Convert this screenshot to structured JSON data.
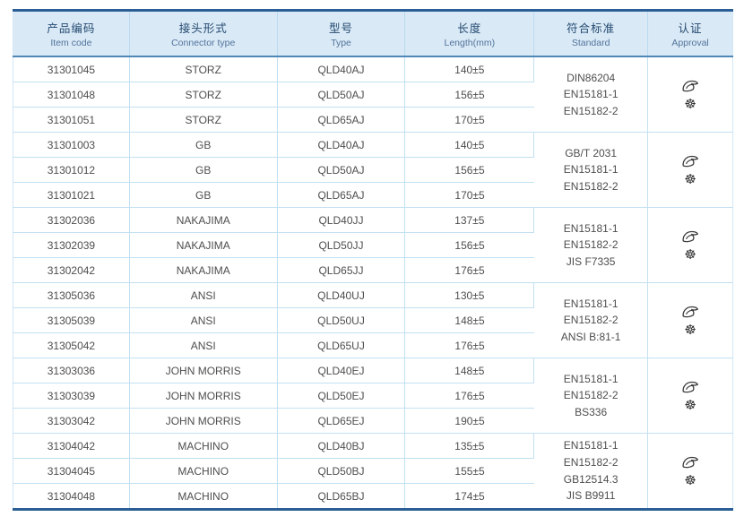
{
  "table": {
    "columns": [
      {
        "zh": "产品编码",
        "en": "Item code"
      },
      {
        "zh": "接头形式",
        "en": "Connector type"
      },
      {
        "zh": "型号",
        "en": "Type"
      },
      {
        "zh": "长度",
        "en": "Length(mm)"
      },
      {
        "zh": "符合标准",
        "en": "Standard"
      },
      {
        "zh": "认证",
        "en": "Approval"
      }
    ],
    "groups": [
      {
        "rows": [
          {
            "item_code": "31301045",
            "connector_type": "STORZ",
            "type": "QLD40AJ",
            "length": "140±5"
          },
          {
            "item_code": "31301048",
            "connector_type": "STORZ",
            "type": "QLD50AJ",
            "length": "156±5"
          },
          {
            "item_code": "31301051",
            "connector_type": "STORZ",
            "type": "QLD65AJ",
            "length": "170±5"
          }
        ],
        "standards": [
          "DIN86204",
          "EN15181-1",
          "EN15182-2"
        ],
        "approval_icons": [
          "certification-logo-icon",
          "wheelmark-icon"
        ]
      },
      {
        "rows": [
          {
            "item_code": "31301003",
            "connector_type": "GB",
            "type": "QLD40AJ",
            "length": "140±5"
          },
          {
            "item_code": "31301012",
            "connector_type": "GB",
            "type": "QLD50AJ",
            "length": "156±5"
          },
          {
            "item_code": "31301021",
            "connector_type": "GB",
            "type": "QLD65AJ",
            "length": "170±5"
          }
        ],
        "standards": [
          "GB/T 2031",
          "EN15181-1",
          "EN15182-2"
        ],
        "approval_icons": [
          "certification-logo-icon",
          "wheelmark-icon"
        ]
      },
      {
        "rows": [
          {
            "item_code": "31302036",
            "connector_type": "NAKAJIMA",
            "type": "QLD40JJ",
            "length": "137±5"
          },
          {
            "item_code": "31302039",
            "connector_type": "NAKAJIMA",
            "type": "QLD50JJ",
            "length": "156±5"
          },
          {
            "item_code": "31302042",
            "connector_type": "NAKAJIMA",
            "type": "QLD65JJ",
            "length": "176±5"
          }
        ],
        "standards": [
          "EN15181-1",
          "EN15182-2",
          "JIS F7335"
        ],
        "approval_icons": [
          "certification-logo-icon",
          "wheelmark-icon"
        ]
      },
      {
        "rows": [
          {
            "item_code": "31305036",
            "connector_type": "ANSI",
            "type": "QLD40UJ",
            "length": "130±5"
          },
          {
            "item_code": "31305039",
            "connector_type": "ANSI",
            "type": "QLD50UJ",
            "length": "148±5"
          },
          {
            "item_code": "31305042",
            "connector_type": "ANSI",
            "type": "QLD65UJ",
            "length": "176±5"
          }
        ],
        "standards": [
          "EN15181-1",
          "EN15182-2",
          "ANSI B:81-1"
        ],
        "approval_icons": [
          "certification-logo-icon",
          "wheelmark-icon"
        ]
      },
      {
        "rows": [
          {
            "item_code": "31303036",
            "connector_type": "JOHN MORRIS",
            "type": "QLD40EJ",
            "length": "148±5"
          },
          {
            "item_code": "31303039",
            "connector_type": "JOHN MORRIS",
            "type": "QLD50EJ",
            "length": "176±5"
          },
          {
            "item_code": "31303042",
            "connector_type": "JOHN MORRIS",
            "type": "QLD65EJ",
            "length": "190±5"
          }
        ],
        "standards": [
          "EN15181-1",
          "EN15182-2",
          "BS336"
        ],
        "approval_icons": [
          "certification-logo-icon",
          "wheelmark-icon"
        ]
      },
      {
        "rows": [
          {
            "item_code": "31304042",
            "connector_type": "MACHINO",
            "type": "QLD40BJ",
            "length": "135±5"
          },
          {
            "item_code": "31304045",
            "connector_type": "MACHINO",
            "type": "QLD50BJ",
            "length": "155±5"
          },
          {
            "item_code": "31304048",
            "connector_type": "MACHINO",
            "type": "QLD65BJ",
            "length": "174±5"
          }
        ],
        "standards": [
          "EN15181-1",
          "EN15182-2",
          "GB12514.3",
          "JIS B9911"
        ],
        "approval_icons": [
          "certification-logo-icon",
          "wheelmark-icon"
        ]
      }
    ],
    "colors": {
      "border_accent": "#2b5e94",
      "header_bg": "#d9e9f6",
      "header_underline": "#4f87b8",
      "grid_line": "#c2e0f2",
      "header_text_zh": "#23496f",
      "header_text_en": "#53749b",
      "body_text": "#4e4e4e",
      "icon_color": "#3d3d3d"
    }
  }
}
